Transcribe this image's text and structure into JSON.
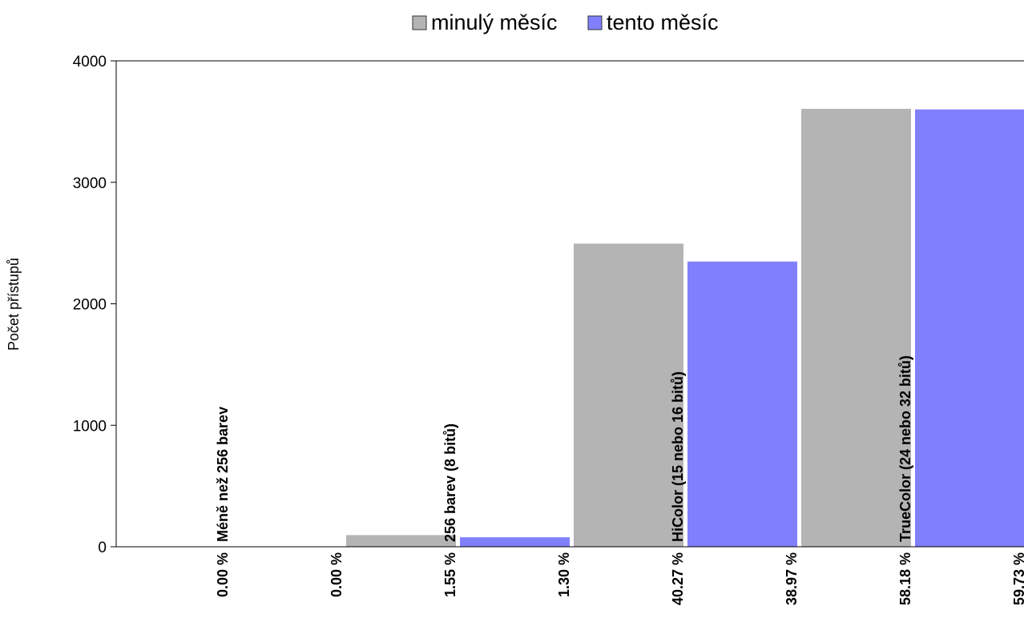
{
  "chart_data": {
    "type": "bar",
    "ylabel": "Počet přístupů",
    "ylim": [
      0,
      4000
    ],
    "yticks": [
      "0",
      "1000",
      "2000",
      "3000",
      "4000"
    ],
    "categories": [
      "Méně než 256 barev",
      "256 barev (8 bitů)",
      "HiColor (15 nebo 16 bitů)",
      "TrueColor (24 nebo 32 bitů)"
    ],
    "series": [
      {
        "name": "minulý měsíc",
        "color": "#b4b4b4",
        "values": [
          0,
          96,
          2495,
          3605
        ],
        "percent_labels": [
          "0.00 %",
          "1.55 %",
          "40.27 %",
          "58.18 %"
        ]
      },
      {
        "name": "tento měsíc",
        "color": "#8080ff",
        "values": [
          0,
          78,
          2348,
          3600
        ],
        "percent_labels": [
          "0.00 %",
          "1.30 %",
          "38.97 %",
          "59.73 %"
        ]
      }
    ],
    "legend_position": "top-center",
    "grid": false
  }
}
